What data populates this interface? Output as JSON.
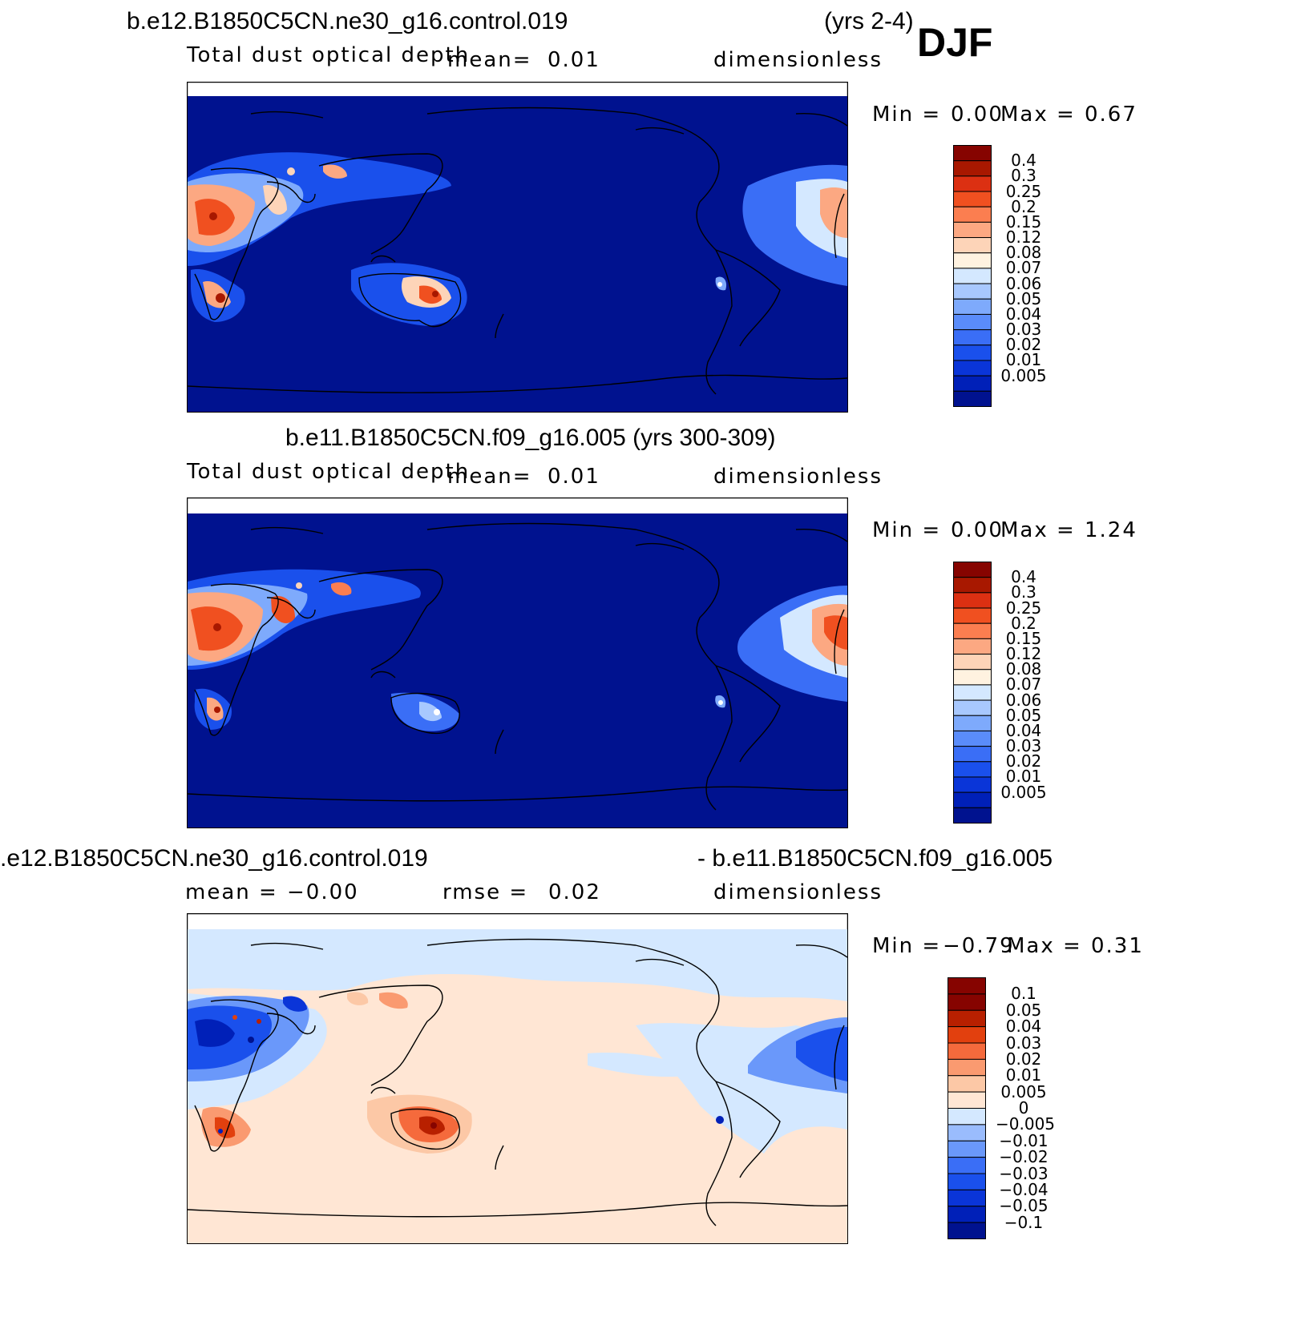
{
  "season": "DJF",
  "panels": [
    {
      "id": "top",
      "case": "b.e12.B1850C5CN.ne30_g16.control.019",
      "years": "(yrs 2-4)",
      "variable": "Total dust optical depth",
      "mean_label": "mean=",
      "mean_value": "0.01",
      "units": "dimensionless",
      "min_label": "Min =",
      "min_value": "0.00",
      "max_label": "Max =",
      "max_value": "0.67",
      "levels": [
        "0.4",
        "0.3",
        "0.25",
        "0.2",
        "0.15",
        "0.12",
        "0.08",
        "0.07",
        "0.06",
        "0.05",
        "0.04",
        "0.03",
        "0.02",
        "0.01",
        "0.005"
      ]
    },
    {
      "id": "middle",
      "title": "b.e11.B1850C5CN.f09_g16.005 (yrs 300-309)",
      "variable": "Total dust optical depth",
      "mean_label": "mean=",
      "mean_value": "0.01",
      "units": "dimensionless",
      "min_label": "Min =",
      "min_value": "0.00",
      "max_label": "Max =",
      "max_value": "1.24",
      "levels": [
        "0.4",
        "0.3",
        "0.25",
        "0.2",
        "0.15",
        "0.12",
        "0.08",
        "0.07",
        "0.06",
        "0.05",
        "0.04",
        "0.03",
        "0.02",
        "0.01",
        "0.005"
      ]
    },
    {
      "id": "bottom",
      "case_a": ".e12.B1850C5CN.ne30_g16.control.019",
      "case_b": "- b.e11.B1850C5CN.f09_g16.005",
      "mean_label": "mean =",
      "mean_value": "−0.00",
      "rmse_label": "rmse =",
      "rmse_value": "0.02",
      "units": "dimensionless",
      "min_label": "Min =",
      "min_value": "−0.79",
      "max_label": "Max =",
      "max_value": "0.31",
      "levels": [
        "0.1",
        "0.05",
        "0.04",
        "0.03",
        "0.02",
        "0.01",
        "0.005",
        "0",
        "−0.005",
        "−0.01",
        "−0.02",
        "−0.03",
        "−0.04",
        "−0.05",
        "−0.1"
      ]
    }
  ],
  "colors": {
    "ocean_dtau": "#00128f",
    "diff_pos_bg": "#ffe6d4",
    "diff_neg_bg": "#d4e8ff",
    "seq": [
      "#00128f",
      "#0020b8",
      "#0a35d8",
      "#1a50ec",
      "#3a6ef6",
      "#5a8cfa",
      "#7eaafc",
      "#a8c8fe",
      "#d4e8ff",
      "#fff2e0",
      "#fdd4b8",
      "#fca882",
      "#fb7e50",
      "#f05020",
      "#dc3012",
      "#a81800",
      "#860400"
    ],
    "div": [
      "#00128f",
      "#0020b8",
      "#0a35d8",
      "#1a50ec",
      "#3a6ef6",
      "#6a98fa",
      "#9abcfd",
      "#d4e8ff",
      "#ffe6d4",
      "#fcc8a6",
      "#fa9a70",
      "#f56a3c",
      "#e2400e",
      "#b82000",
      "#860400"
    ]
  }
}
